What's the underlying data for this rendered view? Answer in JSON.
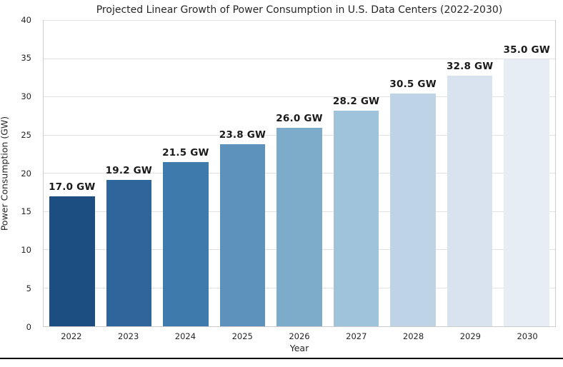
{
  "figure": {
    "title": "Projected Linear Growth of Power Consumption in U.S. Data Centers (2022-2030)",
    "xlabel": "Year",
    "ylabel": "Power Consumption (GW)"
  },
  "chart_data": {
    "type": "bar",
    "title": "Projected Linear Growth of Power Consumption in U.S. Data Centers (2022-2030)",
    "xlabel": "Year",
    "ylabel": "Power Consumption (GW)",
    "categories": [
      "2022",
      "2023",
      "2024",
      "2025",
      "2026",
      "2027",
      "2028",
      "2029",
      "2030"
    ],
    "values": [
      17.0,
      19.2,
      21.5,
      23.8,
      26.0,
      28.2,
      30.5,
      32.8,
      35.0
    ],
    "bar_labels": [
      "17.0 GW",
      "19.2 GW",
      "21.5 GW",
      "23.8 GW",
      "26.0 GW",
      "28.2 GW",
      "30.5 GW",
      "32.8 GW",
      "35.0 GW"
    ],
    "bar_colors": [
      "#1d4e81",
      "#2e669c",
      "#3f7aad",
      "#5d92bc",
      "#7dabca",
      "#9fc3da",
      "#bed3e6",
      "#d9e3ef",
      "#e7edf4"
    ],
    "ylim": [
      0,
      40
    ],
    "yticks": [
      0,
      5,
      10,
      15,
      20,
      25,
      30,
      35,
      40
    ],
    "grid": "horizontal-only",
    "legend_position": "none",
    "bar_width_fraction": 0.8
  },
  "colors": {
    "background": "#ffffff",
    "gridline": "#e2e2e2",
    "spine": "#cccccc",
    "tick_text": "#262626",
    "title_text": "#262626",
    "value_label_text": "#1a1a1a",
    "bottom_rule": "#000000"
  }
}
